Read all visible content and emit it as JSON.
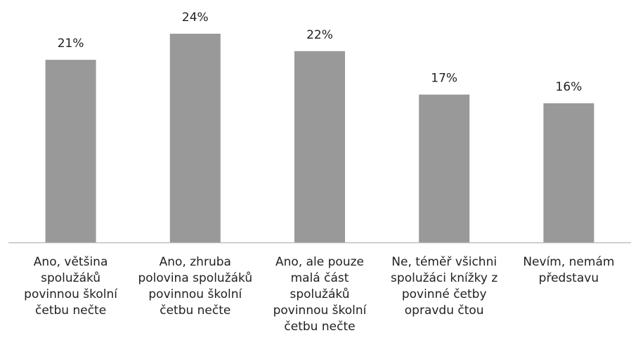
{
  "chart_data": {
    "type": "bar",
    "categories": [
      "Ano, většina spolužáků povinnou školní četbu nečte",
      "Ano, zhruba polovina spolužáků povinnou školní četbu nečte",
      "Ano, ale pouze malá část spolužáků povinnou školní četbu nečte",
      "Ne, téměř všichni spolužáci knížky z povinné četby opravdu čtou",
      "Nevím, nemám představu"
    ],
    "values": [
      21,
      24,
      22,
      17,
      16
    ],
    "value_labels": [
      "21%",
      "24%",
      "22%",
      "17%",
      "16%"
    ],
    "color": "#999999"
  }
}
